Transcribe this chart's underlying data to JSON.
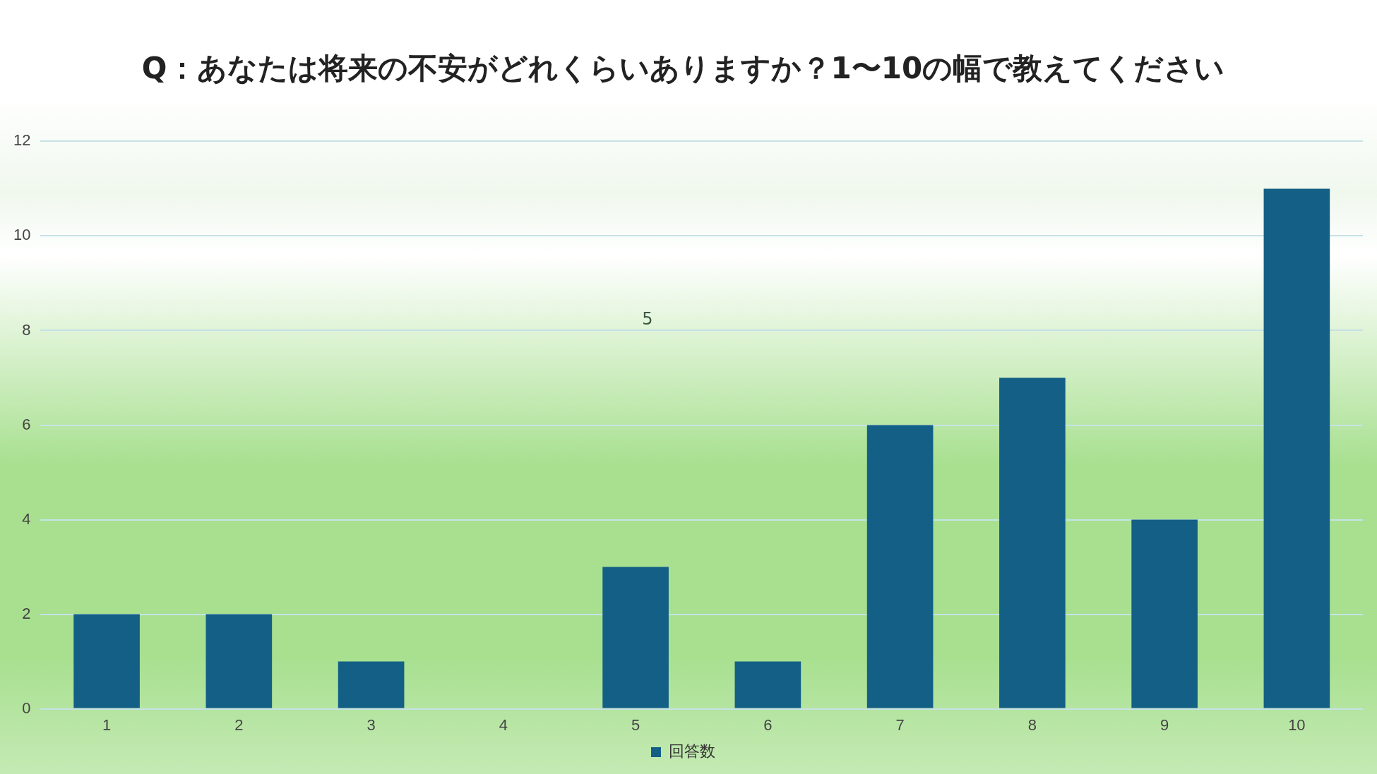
{
  "chart_data": {
    "type": "bar",
    "title": "Q：あなたは将来の不安がどれくらいありますか？1〜10の幅で教えてください",
    "categories": [
      "1",
      "2",
      "3",
      "4",
      "5",
      "6",
      "7",
      "8",
      "9",
      "10"
    ],
    "series": [
      {
        "name": "回答数",
        "color": "#135f86",
        "values": [
          2,
          2,
          1,
          0,
          3,
          1,
          6,
          7,
          4,
          11
        ]
      }
    ],
    "ylim": [
      0,
      12
    ],
    "yticks": [
      0,
      2,
      4,
      6,
      8,
      10,
      12
    ],
    "grid": "y",
    "legend": "bottom",
    "annotations": [
      "5"
    ]
  }
}
